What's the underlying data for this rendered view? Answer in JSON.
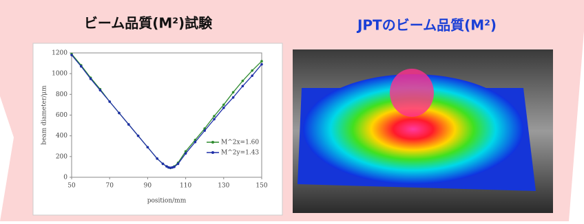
{
  "left_title": "ビーム品質(M²)試験",
  "right_title": "JPTのビーム品質(M²)",
  "chart_data": {
    "type": "line",
    "x": [
      50,
      55,
      60,
      65,
      70,
      75,
      80,
      85,
      90,
      95,
      98,
      100,
      101,
      102,
      103,
      104,
      106,
      110,
      115,
      120,
      125,
      130,
      135,
      140,
      145,
      150
    ],
    "series": [
      {
        "name": "M^2x=1.60",
        "color": "#2e8b2e",
        "values": [
          1190,
          1080,
          960,
          850,
          730,
          620,
          510,
          400,
          290,
          180,
          130,
          105,
          95,
          90,
          95,
          105,
          140,
          250,
          360,
          470,
          590,
          700,
          820,
          930,
          1030,
          1120
        ]
      },
      {
        "name": "M^2y=1.43",
        "color": "#1f2fa8",
        "values": [
          1180,
          1070,
          950,
          840,
          730,
          620,
          510,
          400,
          290,
          180,
          130,
          105,
          95,
          92,
          95,
          100,
          130,
          230,
          340,
          450,
          560,
          670,
          770,
          880,
          980,
          1090
        ]
      }
    ],
    "xlim": [
      50,
      150
    ],
    "xticks": [
      50,
      70,
      90,
      110,
      130,
      150
    ],
    "ylim": [
      0,
      1200
    ],
    "yticks": [
      0,
      200,
      400,
      600,
      800,
      1000,
      1200
    ],
    "xlabel": "position/mm",
    "ylabel": "beam diameter/μm"
  }
}
